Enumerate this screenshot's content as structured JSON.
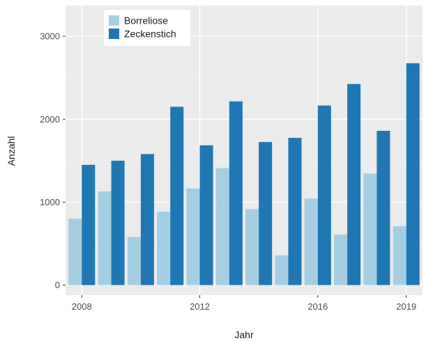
{
  "chart_data": {
    "type": "bar",
    "xlabel": "Jahr",
    "ylabel": "Anzahl",
    "x": [
      2008,
      2009,
      2010,
      2011,
      2012,
      2013,
      2014,
      2015,
      2016,
      2017,
      2018,
      2019
    ],
    "x_ticks": [
      "2008",
      "2012",
      "2016",
      "2019"
    ],
    "x_tick_values": [
      2008,
      2012,
      2016,
      2019
    ],
    "y_ticks": [
      "0",
      "1000",
      "2000",
      "3000"
    ],
    "y_tick_values": [
      0,
      1000,
      2000,
      3000
    ],
    "ylim": [
      -120,
      3370
    ],
    "xlim": [
      2007.45,
      2019.55
    ],
    "grid": true,
    "legend_position": "top-left",
    "series": [
      {
        "name": "Borreliose",
        "color": "#a6cee3",
        "values": [
          800,
          1130,
          580,
          885,
          1165,
          1410,
          915,
          360,
          1045,
          610,
          1345,
          710
        ]
      },
      {
        "name": "Zeckenstich",
        "color": "#1f78b4",
        "values": [
          1450,
          1500,
          1580,
          2150,
          1685,
          2215,
          1725,
          1775,
          2165,
          2425,
          1860,
          2675
        ]
      }
    ]
  }
}
